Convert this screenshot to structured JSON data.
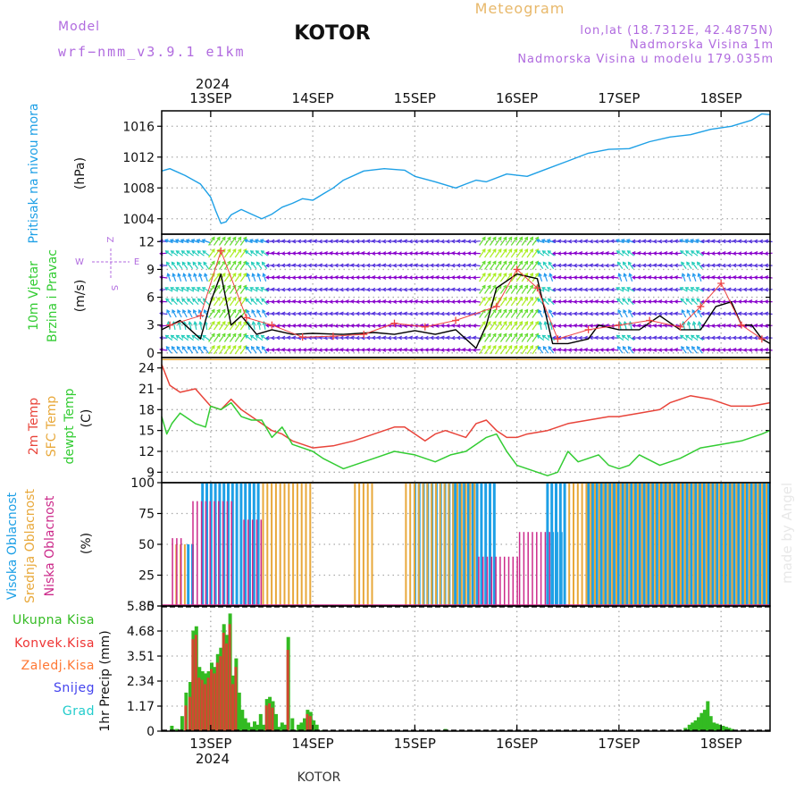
{
  "header": {
    "model_label": "Model",
    "model_name": "wrf−nmm_v3.9.1  e1km",
    "station": "KOTOR",
    "product": "Meteogram",
    "lonlat": "lon,lat (18.7312E, 42.4875N)",
    "elevation": "Nadmorska Visina 1m",
    "model_elevation": "Nadmorska Visina u modelu 179.035m",
    "watermark": "made by Angel",
    "footer_station": "KOTOR"
  },
  "time_axis": {
    "year": "2024",
    "day_labels": [
      "13SEP",
      "14SEP",
      "15SEP",
      "16SEP",
      "17SEP",
      "18SEP"
    ],
    "day_positions": [
      1,
      2,
      3,
      4,
      5,
      6
    ],
    "start": 0.52,
    "end": 6.48
  },
  "colors": {
    "pressure": "#1ea0e6",
    "temp2m": "#e8443a",
    "sfc_temp": "#e8a83a",
    "dewpoint": "#33cc33",
    "high_cloud": "#1ea0e6",
    "mid_cloud": "#e8a83a",
    "low_cloud": "#cc2a8a",
    "total_precip": "#33bb22",
    "conv_precip": "#ee3333",
    "frozen_precip": "#ff7733",
    "snow": "#4444ee",
    "hail": "#22cccc",
    "wind_calm": "#8800cc",
    "wind_strong": "#aaee22",
    "gust": "#ee4444"
  },
  "chart_data": [
    {
      "id": "pressure",
      "type": "line",
      "ylabel_lines": [
        "Pritisak na nivou mora"
      ],
      "unit": "(hPa)",
      "ylim": [
        1002,
        1018
      ],
      "yticks": [
        1004,
        1008,
        1012,
        1016
      ],
      "series": [
        {
          "name": "Pritisak na nivou mora",
          "color_key": "pressure",
          "x": [
            0.52,
            0.6,
            0.75,
            0.9,
            1.0,
            1.05,
            1.1,
            1.15,
            1.2,
            1.3,
            1.4,
            1.5,
            1.6,
            1.7,
            1.8,
            1.9,
            2.0,
            2.1,
            2.2,
            2.3,
            2.5,
            2.7,
            2.9,
            3.0,
            3.2,
            3.4,
            3.5,
            3.6,
            3.7,
            3.9,
            4.1,
            4.3,
            4.5,
            4.7,
            4.9,
            5.1,
            5.3,
            5.5,
            5.7,
            5.9,
            6.1,
            6.3,
            6.4,
            6.48
          ],
          "y": [
            1010.2,
            1010.5,
            1009.6,
            1008.5,
            1006.8,
            1005.0,
            1003.4,
            1003.6,
            1004.5,
            1005.2,
            1004.6,
            1004.0,
            1004.6,
            1005.5,
            1006.0,
            1006.6,
            1006.4,
            1007.2,
            1008.0,
            1009.0,
            1010.2,
            1010.5,
            1010.3,
            1009.5,
            1008.8,
            1008.0,
            1008.5,
            1009.0,
            1008.8,
            1009.8,
            1009.5,
            1010.5,
            1011.5,
            1012.5,
            1013.0,
            1013.1,
            1014.0,
            1014.6,
            1014.9,
            1015.6,
            1016.0,
            1016.8,
            1017.6,
            1017.5
          ]
        }
      ]
    },
    {
      "id": "wind",
      "type": "line",
      "ylabel_lines": [
        "10m Vjetar",
        "Brzina i Pravac"
      ],
      "unit": "(m/s)",
      "compass": [
        "Z",
        "W",
        "E",
        "S"
      ],
      "ylim": [
        -0.5,
        12.8
      ],
      "yticks": [
        0,
        3,
        6,
        9,
        12
      ],
      "series": [
        {
          "name": "10m Vjetar Brzina",
          "color_key": "",
          "x": [
            0.52,
            0.7,
            0.9,
            1.0,
            1.1,
            1.2,
            1.3,
            1.45,
            1.6,
            1.8,
            2.0,
            2.3,
            2.6,
            2.8,
            3.0,
            3.2,
            3.4,
            3.6,
            3.7,
            3.8,
            4.0,
            4.2,
            4.35,
            4.5,
            4.7,
            4.8,
            5.0,
            5.2,
            5.4,
            5.6,
            5.8,
            5.95,
            6.1,
            6.2,
            6.3,
            6.4,
            6.48
          ],
          "y": [
            2.5,
            3.5,
            1.5,
            5.5,
            8.5,
            3.0,
            4.0,
            2.0,
            2.5,
            2.0,
            2.1,
            2.0,
            2.2,
            2.0,
            2.4,
            2.0,
            2.5,
            0.5,
            3.0,
            7.0,
            8.5,
            8.0,
            1.0,
            1.0,
            1.5,
            3.0,
            2.5,
            2.5,
            4.0,
            2.5,
            2.5,
            5.0,
            5.5,
            3.0,
            3.0,
            1.5,
            1.0
          ]
        },
        {
          "name": "",
          "color_key": "gust",
          "x": [
            0.6,
            0.9,
            1.1,
            1.35,
            1.6,
            1.9,
            2.2,
            2.5,
            2.8,
            3.1,
            3.4,
            3.8,
            4.0,
            4.2,
            4.4,
            4.7,
            5.0,
            5.3,
            5.6,
            5.8,
            6.0,
            6.2,
            6.4
          ],
          "y": [
            3.0,
            4.0,
            11.0,
            3.8,
            3.0,
            1.7,
            1.8,
            2.0,
            3.2,
            2.8,
            3.5,
            5.0,
            9.0,
            7.0,
            1.5,
            2.5,
            3.0,
            3.5,
            2.8,
            5.0,
            7.5,
            3.0,
            1.5
          ]
        }
      ]
    },
    {
      "id": "temperature",
      "type": "line",
      "ylabel_lines": [
        "2m Temp",
        "SFC Temp",
        "dewpt Temp"
      ],
      "unit": "(C)",
      "ylim": [
        7.5,
        25.5
      ],
      "yticks": [
        9,
        12,
        15,
        18,
        21,
        24
      ],
      "series": [
        {
          "name": "SFC Temp",
          "color_key": "sfc_temp",
          "x": [
            0.52,
            6.48
          ],
          "y": [
            25.2,
            25.2
          ]
        },
        {
          "name": "2m Temp",
          "color_key": "temp2m",
          "x": [
            0.52,
            0.6,
            0.7,
            0.85,
            1.0,
            1.1,
            1.2,
            1.3,
            1.5,
            1.6,
            1.7,
            1.8,
            1.9,
            2.0,
            2.2,
            2.4,
            2.6,
            2.8,
            2.9,
            3.1,
            3.2,
            3.3,
            3.5,
            3.6,
            3.7,
            3.8,
            3.9,
            4.0,
            4.1,
            4.3,
            4.5,
            4.7,
            4.9,
            5.0,
            5.2,
            5.4,
            5.5,
            5.7,
            5.9,
            6.1,
            6.3,
            6.48
          ],
          "y": [
            24.5,
            21.5,
            20.5,
            21.0,
            18.5,
            18.0,
            19.5,
            18.0,
            16.0,
            15.0,
            14.5,
            13.5,
            13.0,
            12.5,
            12.8,
            13.5,
            14.5,
            15.5,
            15.5,
            13.5,
            14.5,
            15.0,
            14.0,
            16.0,
            16.5,
            15.0,
            14.0,
            14.0,
            14.5,
            15.0,
            16.0,
            16.5,
            17.0,
            17.0,
            17.5,
            18.0,
            19.0,
            20.0,
            19.5,
            18.5,
            18.5,
            19.0
          ]
        },
        {
          "name": "dewpt Temp",
          "color_key": "dewpoint",
          "x": [
            0.52,
            0.57,
            0.62,
            0.7,
            0.85,
            0.95,
            1.0,
            1.1,
            1.2,
            1.3,
            1.4,
            1.5,
            1.6,
            1.7,
            1.8,
            1.9,
            2.0,
            2.1,
            2.3,
            2.5,
            2.6,
            2.8,
            3.0,
            3.2,
            3.35,
            3.5,
            3.7,
            3.8,
            3.9,
            4.0,
            4.1,
            4.2,
            4.3,
            4.4,
            4.5,
            4.6,
            4.7,
            4.8,
            4.9,
            5.0,
            5.1,
            5.2,
            5.4,
            5.6,
            5.8,
            6.0,
            6.2,
            6.4,
            6.48
          ],
          "y": [
            17.0,
            14.5,
            16.0,
            17.5,
            16.0,
            15.5,
            18.5,
            18.0,
            19.0,
            17.0,
            16.5,
            16.5,
            14.0,
            15.5,
            13.0,
            12.5,
            12.0,
            11.0,
            9.5,
            10.5,
            11.0,
            12.0,
            11.5,
            10.5,
            11.5,
            12.0,
            14.0,
            14.5,
            12.0,
            10.0,
            9.5,
            9.0,
            8.5,
            9.0,
            12.0,
            10.5,
            11.0,
            11.5,
            10.0,
            9.5,
            10.0,
            11.5,
            10.0,
            11.0,
            12.5,
            13.0,
            13.5,
            14.5,
            15.0
          ]
        }
      ]
    },
    {
      "id": "clouds",
      "type": "bar",
      "ylabel_lines": [
        "Visoka Oblacnost",
        "Srednja Oblacnost",
        "Niska Oblacnost"
      ],
      "unit": "(%)",
      "ylim": [
        0,
        100
      ],
      "yticks": [
        0,
        25,
        50,
        75,
        100
      ],
      "series": [
        {
          "name": "Visoka Oblacnost",
          "color_key": "high_cloud",
          "segments": [
            [
              0.78,
              0.85,
              50
            ],
            [
              0.92,
              1.5,
              100
            ],
            [
              2.8,
              3.1,
              0
            ],
            [
              3.0,
              3.4,
              100
            ],
            [
              3.4,
              3.8,
              100
            ],
            [
              4.3,
              4.5,
              100
            ],
            [
              4.35,
              4.45,
              60
            ],
            [
              4.7,
              6.48,
              100
            ]
          ]
        },
        {
          "name": "Srednja Oblacnost",
          "color_key": "mid_cloud",
          "segments": [
            [
              0.65,
              0.75,
              50
            ],
            [
              1.5,
              2.0,
              100
            ],
            [
              2.4,
              2.6,
              100
            ],
            [
              2.9,
              3.6,
              100
            ],
            [
              4.5,
              6.48,
              100
            ]
          ]
        },
        {
          "name": "Niska Oblacnost",
          "color_key": "low_cloud",
          "segments": [
            [
              0.6,
              0.72,
              55
            ],
            [
              0.8,
              1.2,
              85
            ],
            [
              1.3,
              1.5,
              70
            ],
            [
              3.6,
              4.0,
              40
            ],
            [
              4.0,
              4.3,
              60
            ]
          ]
        }
      ]
    },
    {
      "id": "precip",
      "type": "bar",
      "ylabel_lines": [
        "1hr Precip (mm)"
      ],
      "legend": [
        "Ukupna Kisa",
        "Konvek.Kisa",
        "Zaledj.Kisa",
        "Snijeg",
        "Grad"
      ],
      "ylim": [
        0,
        5.85
      ],
      "yticks": [
        0,
        1.17,
        2.34,
        3.51,
        4.68,
        5.85
      ],
      "bars_total": {
        "color_key": "total_precip",
        "x": [
          0.62,
          0.67,
          0.72,
          0.76,
          0.8,
          0.83,
          0.86,
          0.89,
          0.92,
          0.95,
          0.98,
          1.01,
          1.04,
          1.07,
          1.1,
          1.13,
          1.16,
          1.19,
          1.22,
          1.25,
          1.28,
          1.31,
          1.34,
          1.37,
          1.4,
          1.43,
          1.46,
          1.49,
          1.52,
          1.55,
          1.58,
          1.61,
          1.64,
          1.67,
          1.7,
          1.73,
          1.76,
          1.8,
          1.83,
          1.86,
          1.89,
          1.92,
          1.95,
          1.98,
          2.01,
          2.04,
          2.1,
          3.3,
          5.65,
          5.69,
          5.72,
          5.75,
          5.78,
          5.81,
          5.84,
          5.87,
          5.9,
          5.93,
          5.96,
          5.99,
          6.02,
          6.05,
          6.08,
          6.11,
          6.14
        ],
        "y": [
          0.25,
          0.1,
          0.7,
          1.8,
          2.3,
          4.7,
          4.9,
          3.0,
          2.8,
          2.7,
          2.8,
          3.2,
          3.0,
          3.6,
          3.9,
          5.0,
          4.5,
          5.5,
          2.6,
          3.4,
          1.8,
          1.0,
          0.6,
          0.4,
          0.2,
          0.45,
          0.3,
          0.8,
          0.3,
          1.5,
          1.6,
          1.4,
          0.8,
          0.2,
          0.4,
          0.3,
          4.4,
          0.6,
          0.05,
          0.3,
          0.4,
          0.6,
          1.0,
          0.9,
          0.5,
          0.3,
          0.05,
          0.1,
          0.15,
          0.3,
          0.4,
          0.5,
          0.65,
          0.85,
          1.0,
          1.4,
          0.7,
          0.4,
          0.35,
          0.3,
          0.25,
          0.2,
          0.15,
          0.1,
          0.05
        ]
      },
      "bars_conv": {
        "color_key": "conv_precip",
        "x": [
          0.76,
          0.8,
          0.83,
          0.86,
          0.89,
          0.92,
          0.95,
          0.98,
          1.01,
          1.04,
          1.07,
          1.1,
          1.13,
          1.16,
          1.19,
          1.22,
          1.25,
          1.55,
          1.58,
          1.61,
          1.76,
          1.95,
          1.98
        ],
        "y": [
          1.2,
          1.6,
          4.3,
          4.5,
          2.5,
          2.4,
          2.2,
          2.5,
          2.9,
          2.7,
          3.2,
          3.5,
          4.6,
          4.1,
          5.0,
          2.2,
          3.0,
          1.2,
          1.3,
          1.1,
          3.8,
          0.8,
          0.7
        ]
      }
    }
  ]
}
